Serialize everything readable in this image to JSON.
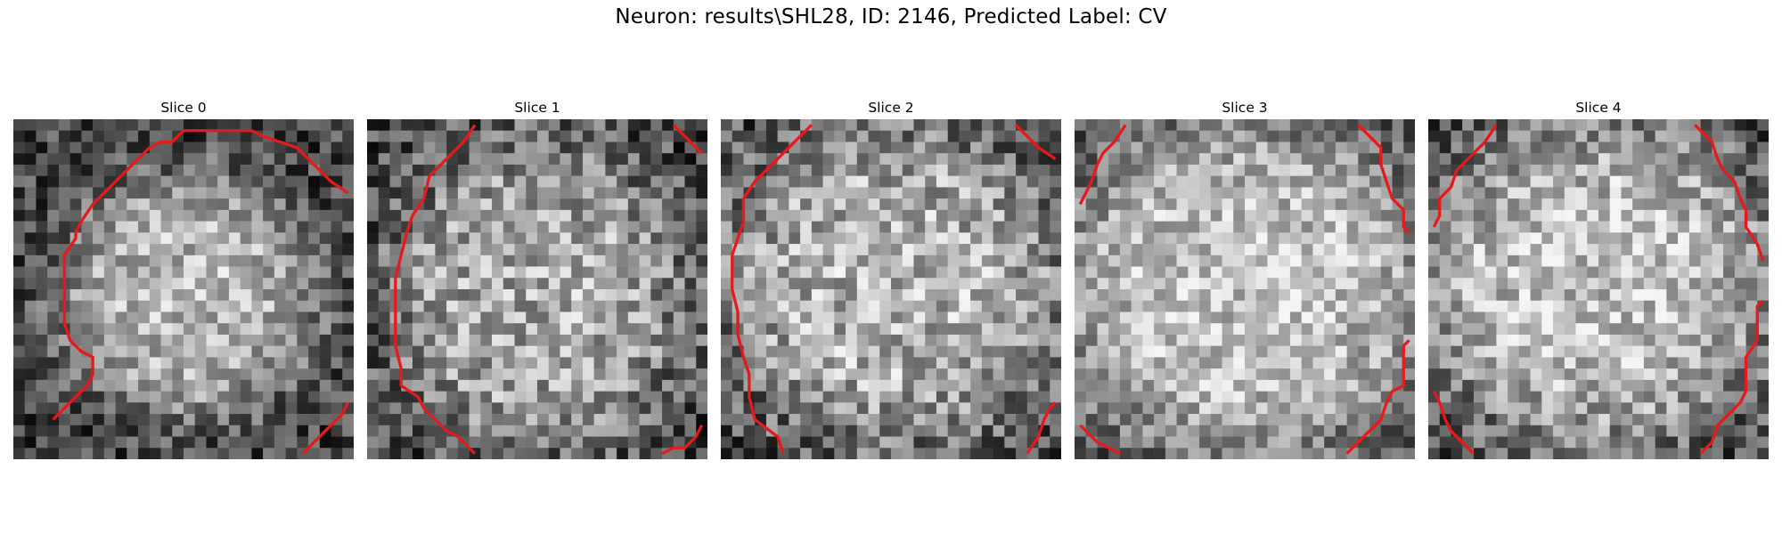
{
  "figure": {
    "title": "Neuron: results\\SHL28, ID: 2146, Predicted Label: CV"
  },
  "contour_color": "#e41a1c",
  "slices": [
    {
      "label": "Slice 0"
    },
    {
      "label": "Slice 1"
    },
    {
      "label": "Slice 2"
    },
    {
      "label": "Slice 3"
    },
    {
      "label": "Slice 4"
    }
  ]
}
